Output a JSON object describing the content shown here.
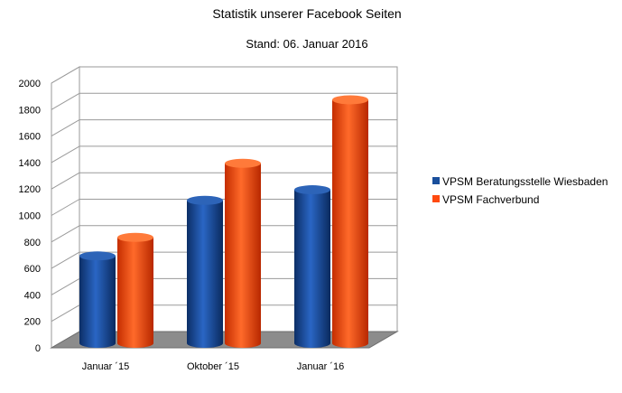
{
  "chart_data": {
    "type": "bar",
    "title": "Statistik unserer Facebook Seiten",
    "subtitle": "Stand: 06. Januar 2016",
    "categories": [
      "Januar ´15",
      "Oktober ´15",
      "Januar ´16"
    ],
    "series": [
      {
        "name": "VPSM Beratungsstelle Wiesbaden",
        "values": [
          660,
          1080,
          1160
        ],
        "color": "#1a4f9c"
      },
      {
        "name": "VPSM Fachverbund",
        "values": [
          800,
          1360,
          1840
        ],
        "color": "#ff4a0f"
      }
    ],
    "ylim": [
      0,
      2000
    ],
    "yticks": [
      "0",
      "200",
      "400",
      "600",
      "800",
      "1000",
      "1200",
      "1400",
      "1600",
      "1800",
      "2000"
    ],
    "grid": true,
    "legend_position": "right",
    "style": "3d-cylinder"
  }
}
